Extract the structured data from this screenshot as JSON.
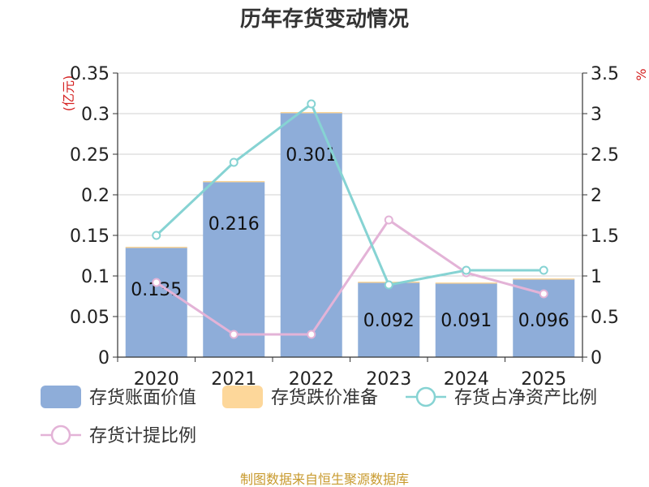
{
  "chart_data": {
    "type": "bar+line",
    "title": "历年存货变动情况",
    "categories": [
      "2020",
      "2021",
      "2022",
      "2023",
      "2024",
      "2025"
    ],
    "left_axis": {
      "unit": "(亿元)",
      "ylim": [
        0,
        0.35
      ],
      "ticks": [
        "0",
        "0.05",
        "0.1",
        "0.15",
        "0.2",
        "0.25",
        "0.3",
        "0.35"
      ]
    },
    "right_axis": {
      "unit": "%",
      "ylim": [
        0,
        3.5
      ],
      "ticks": [
        "0",
        "0.5",
        "1",
        "1.5",
        "2",
        "2.5",
        "3",
        "3.5"
      ]
    },
    "series": [
      {
        "name": "存货账面价值",
        "type": "bar",
        "axis": "left",
        "color": "#8eadd9",
        "values": [
          0.135,
          0.216,
          0.301,
          0.092,
          0.091,
          0.096
        ],
        "labels": [
          "0.135",
          "0.216",
          "0.301",
          "0.092",
          "0.091",
          "0.096"
        ]
      },
      {
        "name": "存货跌价准备",
        "type": "bar",
        "axis": "left",
        "color": "#fdd79a",
        "values": [
          0.001,
          0.001,
          0.001,
          0.001,
          0.001,
          0.001
        ]
      },
      {
        "name": "存货占净资产比例",
        "type": "line",
        "axis": "right",
        "color": "#86d3d3",
        "values": [
          1.5,
          2.4,
          3.12,
          0.89,
          1.07,
          1.07
        ]
      },
      {
        "name": "存货计提比例",
        "type": "line",
        "axis": "right",
        "color": "#e3b3d7",
        "values": [
          0.92,
          0.28,
          0.28,
          1.69,
          1.04,
          0.78
        ]
      }
    ]
  },
  "source": "制图数据来自恒生聚源数据库"
}
